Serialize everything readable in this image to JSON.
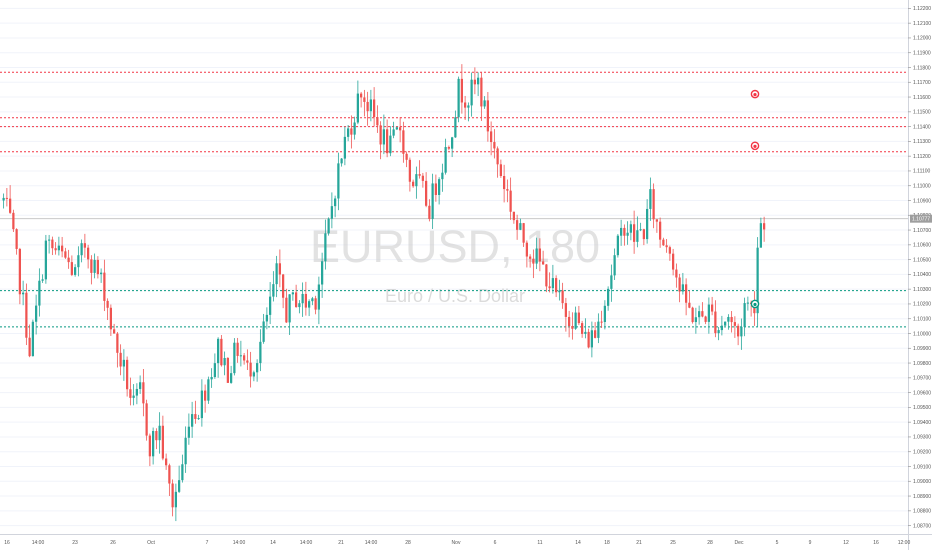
{
  "watermark": {
    "symbol": "EURUSD, 180",
    "description": "Euro / U.S. Dollar"
  },
  "price_axis": {
    "ticks": [
      "1.12200",
      "1.12100",
      "1.12000",
      "1.11900",
      "1.11800",
      "1.11700",
      "1.11600",
      "1.11500",
      "1.11400",
      "1.11300",
      "1.11200",
      "1.11100",
      "1.11000",
      "1.10900",
      "1.10800",
      "1.10700",
      "1.10600",
      "1.10500",
      "1.10400",
      "1.10300",
      "1.10200",
      "1.10100",
      "1.10000",
      "1.09900",
      "1.09800",
      "1.09700",
      "1.09600",
      "1.09500",
      "1.09400",
      "1.09300",
      "1.09200",
      "1.09100",
      "1.09000",
      "1.08900",
      "1.08800",
      "1.08700"
    ],
    "last_price": "1.10777",
    "last_price_color": "#9e9e9e"
  },
  "time_axis": {
    "ticks": [
      "16",
      "14:00",
      "23",
      "26",
      "Oct",
      "7",
      "14:00",
      "14",
      "14:00",
      "21",
      "14:00",
      "28",
      "Nov",
      "6",
      "11",
      "14",
      "18",
      "21",
      "25",
      "28",
      "Dec",
      "5",
      "9",
      "12",
      "16",
      "12:00"
    ]
  },
  "colors": {
    "up": "#26a69a",
    "down": "#ef5350",
    "resistance": "#f23645",
    "support": "#089981",
    "grid": "#f0f3fa",
    "axis_text": "#555555"
  },
  "chart_data": {
    "type": "candlestick",
    "symbol": "EURUSD",
    "timeframe": "180",
    "ylim": [
      1.0865,
      1.1225
    ],
    "price_path": [
      [
        0,
        1.109
      ],
      [
        2,
        1.1075
      ],
      [
        5,
        1.1035
      ],
      [
        8,
        1.099
      ],
      [
        10,
        1.1015
      ],
      [
        13,
        1.106
      ],
      [
        16,
        1.1055
      ],
      [
        19,
        1.105
      ],
      [
        22,
        1.104
      ],
      [
        25,
        1.106
      ],
      [
        28,
        1.1045
      ],
      [
        31,
        1.103
      ],
      [
        34,
        1.0995
      ],
      [
        37,
        1.0975
      ],
      [
        40,
        1.095
      ],
      [
        42,
        1.096
      ],
      [
        45,
        1.0925
      ],
      [
        48,
        1.0935
      ],
      [
        50,
        1.0905
      ],
      [
        52,
        1.0885
      ],
      [
        55,
        1.091
      ],
      [
        57,
        1.0945
      ],
      [
        60,
        1.095
      ],
      [
        63,
        1.097
      ],
      [
        66,
        1.099
      ],
      [
        69,
        1.0975
      ],
      [
        72,
        1.099
      ],
      [
        75,
        1.0975
      ],
      [
        78,
        1.0985
      ],
      [
        81,
        1.101
      ],
      [
        84,
        1.104
      ],
      [
        87,
        1.1015
      ],
      [
        90,
        1.1025
      ],
      [
        93,
        1.102
      ],
      [
        96,
        1.1025
      ],
      [
        99,
        1.106
      ],
      [
        102,
        1.11
      ],
      [
        105,
        1.113
      ],
      [
        108,
        1.115
      ],
      [
        110,
        1.1165
      ],
      [
        113,
        1.115
      ],
      [
        116,
        1.1135
      ],
      [
        119,
        1.1125
      ],
      [
        122,
        1.114
      ],
      [
        125,
        1.1105
      ],
      [
        128,
        1.11
      ],
      [
        131,
        1.1085
      ],
      [
        134,
        1.111
      ],
      [
        137,
        1.113
      ],
      [
        140,
        1.1165
      ],
      [
        143,
        1.116
      ],
      [
        146,
        1.117
      ],
      [
        149,
        1.114
      ],
      [
        152,
        1.1115
      ],
      [
        155,
        1.1095
      ],
      [
        158,
        1.107
      ],
      [
        161,
        1.106
      ],
      [
        164,
        1.105
      ],
      [
        167,
        1.104
      ],
      [
        170,
        1.1025
      ],
      [
        173,
        1.1015
      ],
      [
        176,
        1.101
      ],
      [
        179,
        1.0995
      ],
      [
        182,
        1.1
      ],
      [
        185,
        1.1025
      ],
      [
        188,
        1.105
      ],
      [
        191,
        1.1075
      ],
      [
        194,
        1.1065
      ],
      [
        197,
        1.107
      ],
      [
        199,
        1.109
      ],
      [
        202,
        1.1065
      ],
      [
        205,
        1.106
      ],
      [
        208,
        1.103
      ],
      [
        211,
        1.1015
      ],
      [
        214,
        1.101
      ],
      [
        217,
        1.1015
      ],
      [
        220,
        1.1005
      ],
      [
        223,
        1.1012
      ],
      [
        226,
        1.0998
      ],
      [
        228,
        1.102
      ],
      [
        230,
        1.1018
      ],
      [
        231,
        1.1022
      ],
      [
        232,
        1.106
      ],
      [
        233,
        1.1075
      ],
      [
        234,
        1.1078
      ]
    ],
    "last_price": 1.10777,
    "levels": {
      "resistance": [
        1.11768,
        1.1146,
        1.114,
        1.1123
      ],
      "support": [
        1.1029,
        1.10045
      ]
    },
    "markers": [
      {
        "type": "alert",
        "color": "red",
        "price": 1.1162,
        "bar": 232
      },
      {
        "type": "alert",
        "color": "red",
        "price": 1.1127,
        "bar": 232
      },
      {
        "type": "alert",
        "color": "green",
        "price": 1.102,
        "bar": 232
      }
    ]
  }
}
